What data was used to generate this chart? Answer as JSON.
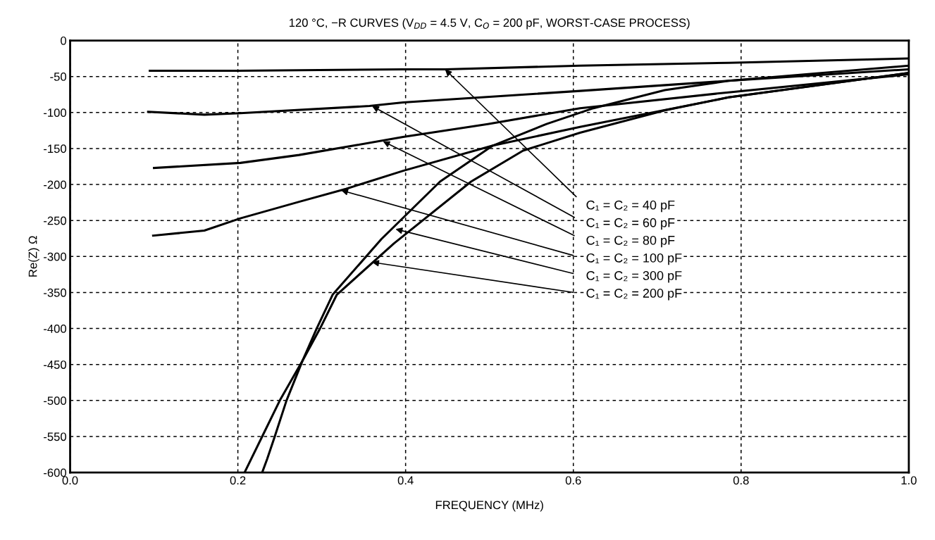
{
  "chart_data": {
    "type": "line",
    "title": "120 °C, −R CURVES (V$_{DD}$ = 4.5 V, C$_{O}$ = 200 pF, WORST-CASE PROCESS)",
    "xlabel": "FREQUENCY (MHz)",
    "ylabel": "Re(Z) Ω",
    "xlim": [
      0,
      1
    ],
    "xticks": [
      {
        "value": 0,
        "label": "0.0"
      },
      0.2,
      0.4,
      0.6,
      0.8,
      {
        "value": 1,
        "label": "1.0"
      }
    ],
    "ylim": [
      -600,
      0
    ],
    "yticks": [
      0,
      -50,
      -100,
      -150,
      -200,
      -250,
      -300,
      -350,
      -400,
      -450,
      -500,
      -550,
      -600
    ],
    "grid": true,
    "line_style": "solid",
    "series": [
      {
        "color": "#000000",
        "x": [
          0.095,
          0.2,
          0.397,
          0.447,
          0.608,
          0.785,
          1.0
        ],
        "values": [
          -42,
          -42,
          -40,
          -40,
          -35,
          -31,
          -25
        ]
      },
      {
        "color": "#000000",
        "x": [
          0.093,
          0.16,
          0.203,
          0.357,
          0.397,
          0.608,
          0.785,
          1.0
        ],
        "values": [
          -99,
          -103,
          -101,
          -91,
          -86,
          -70,
          -56,
          -40
        ]
      },
      {
        "color": "#000000",
        "x": [
          0.1,
          0.203,
          0.273,
          0.343,
          0.397,
          0.498,
          0.608,
          0.785,
          1.0
        ],
        "values": [
          -177,
          -170,
          -159,
          -145,
          -134,
          -116,
          -94,
          -72,
          -47
        ]
      },
      {
        "color": "#000000",
        "x": [
          0.099,
          0.16,
          0.203,
          0.273,
          0.329,
          0.397,
          0.504,
          0.608,
          0.785,
          1.0
        ],
        "values": [
          -271,
          -264,
          -247,
          -224,
          -206,
          -181,
          -146,
          -120,
          -79,
          -45
        ]
      },
      {
        "color": "#000000",
        "x": [
          0.229,
          0.235,
          0.244,
          0.258,
          0.277,
          0.294,
          0.313,
          0.371,
          0.441,
          0.504,
          0.568,
          0.624,
          0.709,
          0.785,
          1.0
        ],
        "values": [
          -600,
          -581,
          -550,
          -500,
          -445,
          -400,
          -353,
          -276,
          -196,
          -146,
          -116,
          -94,
          -69,
          -56,
          -35
        ]
      },
      {
        "color": "#000000",
        "x": [
          0.208,
          0.216,
          0.229,
          0.25,
          0.277,
          0.298,
          0.318,
          0.386,
          0.478,
          0.54,
          0.608,
          0.709,
          0.785,
          1.0
        ],
        "values": [
          -600,
          -581,
          -550,
          -500,
          -445,
          -400,
          -353,
          -282,
          -196,
          -153,
          -128,
          -97,
          -79,
          -45
        ]
      }
    ],
    "annotations": [
      {
        "text": "C₁ = C₂ = 40 pF",
        "x": 0.447,
        "y": -40
      },
      {
        "text": "C₁ = C₂ = 60 pF",
        "x": 0.36,
        "y": -91
      },
      {
        "text": "C₁ = C₂ = 80 pF",
        "x": 0.373,
        "y": -140
      },
      {
        "text": "C₁ = C₂ = 100 pF",
        "x": 0.323,
        "y": -208
      },
      {
        "text": "C₁ = C₂ = 300 pF",
        "x": 0.388,
        "y": -262
      },
      {
        "text": "C₁ = C₂ = 200 pF",
        "x": 0.36,
        "y": -308
      }
    ]
  }
}
